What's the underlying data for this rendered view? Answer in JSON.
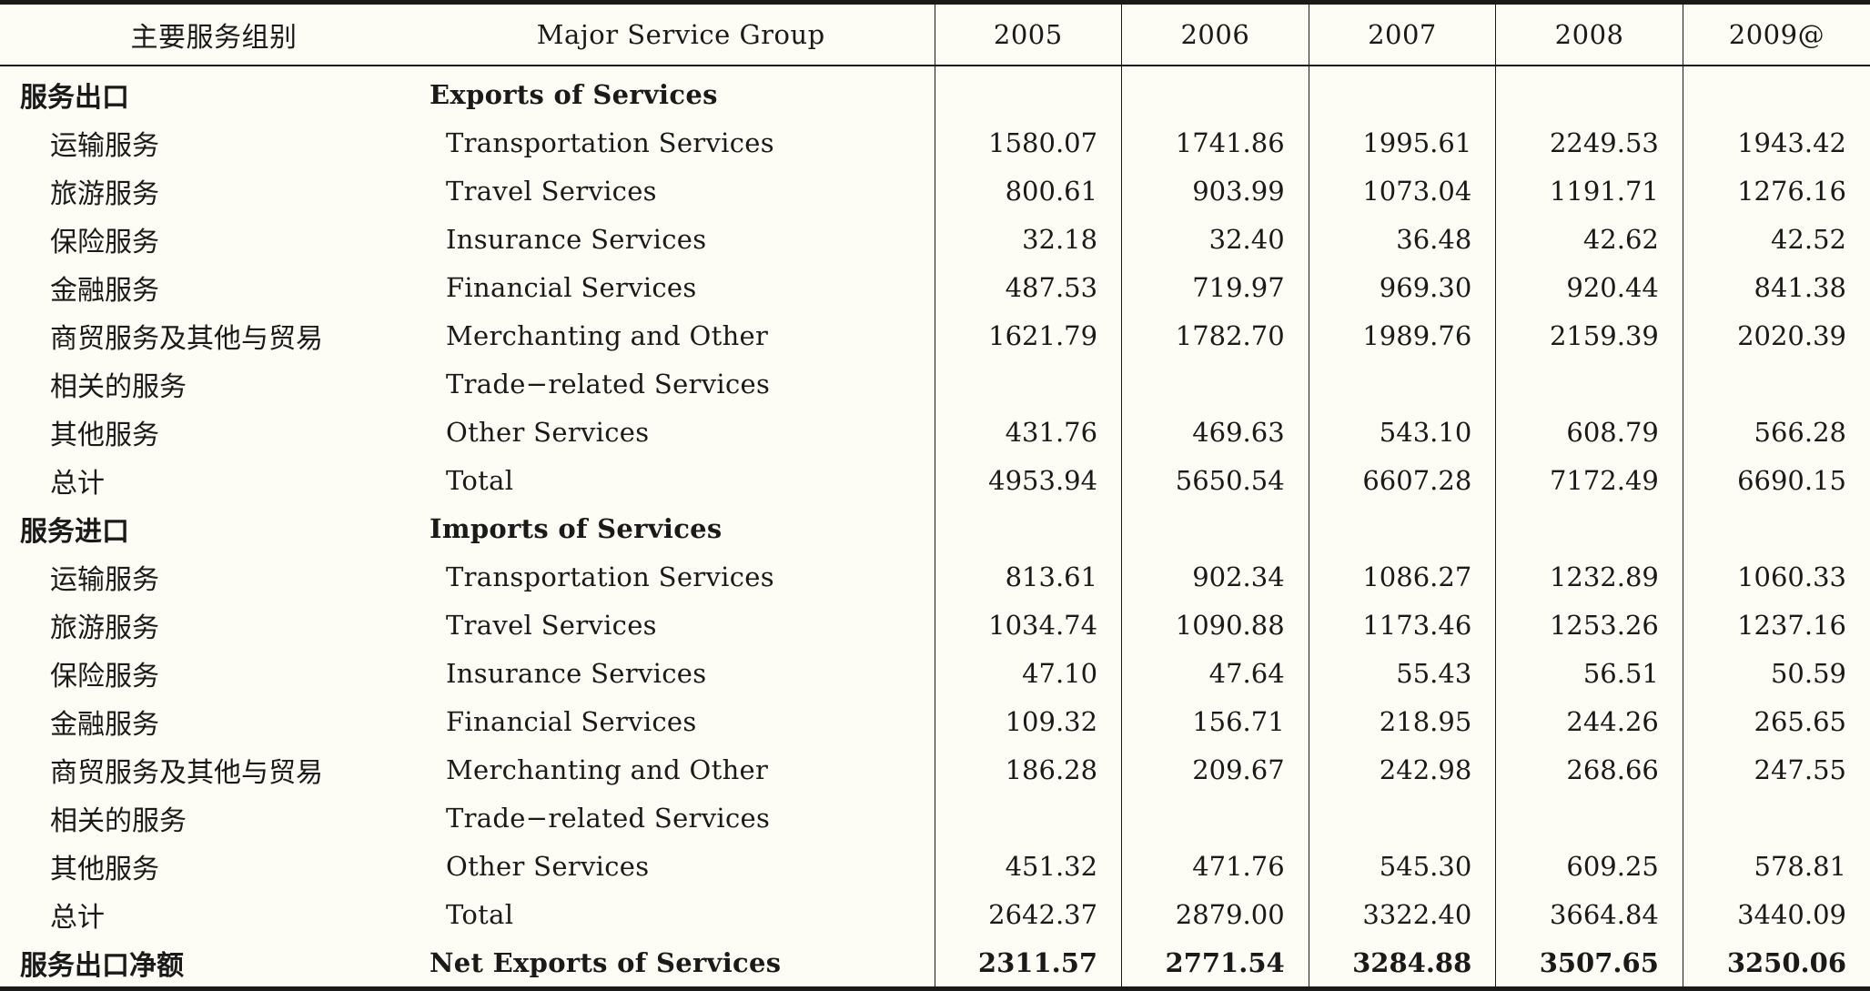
{
  "header": {
    "zh": "主要服务组别",
    "en": "Major Service Group",
    "years": [
      "2005",
      "2006",
      "2007",
      "2008",
      "2009@"
    ]
  },
  "rows": [
    {
      "type": "section",
      "zh": "服务出口",
      "en": "Exports of Services",
      "values": [
        "",
        "",
        "",
        "",
        ""
      ]
    },
    {
      "type": "item",
      "zh": "运输服务",
      "en": "Transportation Services",
      "values": [
        "1580.07",
        "1741.86",
        "1995.61",
        "2249.53",
        "1943.42"
      ]
    },
    {
      "type": "item",
      "zh": "旅游服务",
      "en": "Travel Services",
      "values": [
        "800.61",
        "903.99",
        "1073.04",
        "1191.71",
        "1276.16"
      ]
    },
    {
      "type": "item",
      "zh": "保险服务",
      "en": "Insurance Services",
      "values": [
        "32.18",
        "32.40",
        "36.48",
        "42.62",
        "42.52"
      ]
    },
    {
      "type": "item",
      "zh": "金融服务",
      "en": "Financial Services",
      "values": [
        "487.53",
        "719.97",
        "969.30",
        "920.44",
        "841.38"
      ]
    },
    {
      "type": "item",
      "zh": "商贸服务及其他与贸易",
      "en": "Merchanting and Other",
      "values": [
        "1621.79",
        "1782.70",
        "1989.76",
        "2159.39",
        "2020.39"
      ]
    },
    {
      "type": "item",
      "zh": "相关的服务",
      "en": "Trade−related Services",
      "values": [
        "",
        "",
        "",
        "",
        ""
      ]
    },
    {
      "type": "item",
      "zh": "其他服务",
      "en": "Other Services",
      "values": [
        "431.76",
        "469.63",
        "543.10",
        "608.79",
        "566.28"
      ]
    },
    {
      "type": "item",
      "zh": "总计",
      "en": "Total",
      "values": [
        "4953.94",
        "5650.54",
        "6607.28",
        "7172.49",
        "6690.15"
      ]
    },
    {
      "type": "section",
      "zh": "服务进口",
      "en": "Imports of Services",
      "values": [
        "",
        "",
        "",
        "",
        ""
      ]
    },
    {
      "type": "item",
      "zh": "运输服务",
      "en": "Transportation Services",
      "values": [
        "813.61",
        "902.34",
        "1086.27",
        "1232.89",
        "1060.33"
      ]
    },
    {
      "type": "item",
      "zh": "旅游服务",
      "en": "Travel Services",
      "values": [
        "1034.74",
        "1090.88",
        "1173.46",
        "1253.26",
        "1237.16"
      ]
    },
    {
      "type": "item",
      "zh": "保险服务",
      "en": "Insurance Services",
      "values": [
        "47.10",
        "47.64",
        "55.43",
        "56.51",
        "50.59"
      ]
    },
    {
      "type": "item",
      "zh": "金融服务",
      "en": "Financial Services",
      "values": [
        "109.32",
        "156.71",
        "218.95",
        "244.26",
        "265.65"
      ]
    },
    {
      "type": "item",
      "zh": "商贸服务及其他与贸易",
      "en": "Merchanting and Other",
      "values": [
        "186.28",
        "209.67",
        "242.98",
        "268.66",
        "247.55"
      ]
    },
    {
      "type": "item",
      "zh": "相关的服务",
      "en": "Trade−related Services",
      "values": [
        "",
        "",
        "",
        "",
        ""
      ]
    },
    {
      "type": "item",
      "zh": "其他服务",
      "en": "Other Services",
      "values": [
        "451.32",
        "471.76",
        "545.30",
        "609.25",
        "578.81"
      ]
    },
    {
      "type": "item",
      "zh": "总计",
      "en": "Total",
      "values": [
        "2642.37",
        "2879.00",
        "3322.40",
        "3664.84",
        "3440.09"
      ]
    },
    {
      "type": "net",
      "zh": "服务出口净额",
      "en": "Net Exports of Services",
      "values": [
        "2311.57",
        "2771.54",
        "3284.88",
        "3507.65",
        "3250.06"
      ]
    }
  ]
}
